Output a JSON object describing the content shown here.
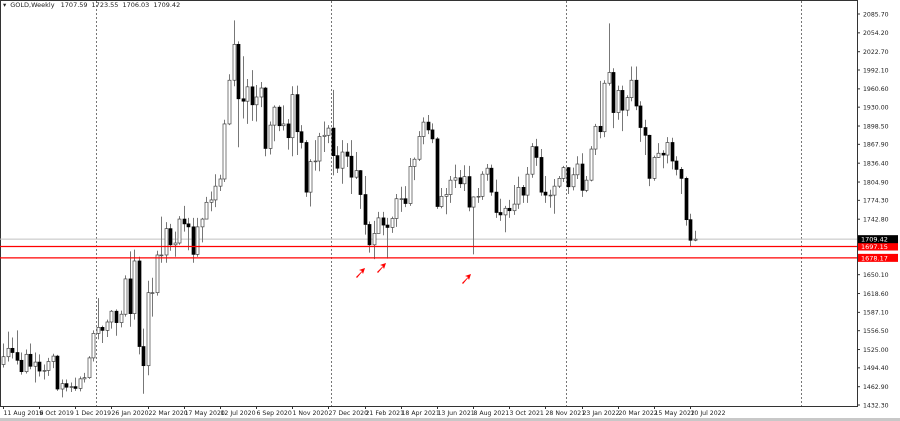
{
  "header": {
    "symbol_label": "GOLD,Weekly",
    "open": "1707.59",
    "high": "1723.55",
    "low": "1706.03",
    "close": "1709.42"
  },
  "colors": {
    "background": "#ffffff",
    "bear_body": "#000000",
    "bull_body": "#ffffff",
    "candle_outline": "#444444",
    "wick": "#777777",
    "support_line": "#ff0000",
    "arrow": "#ff0000",
    "bid_line": "#c0c0c0",
    "separator": "#555555"
  },
  "chart_data": {
    "type": "candlestick",
    "title": "GOLD,Weekly",
    "timeframe": "Weekly",
    "ylim": [
      1432.3,
      2085.7
    ],
    "grid": false,
    "first_week": "11 Aug 2019",
    "last_week": "17 Jul 2022",
    "x_tick_labels": [
      "11 Aug 2019",
      "6 Oct 2019",
      "1 Dec 2019",
      "26 Jan 2020",
      "22 Mar 2020",
      "17 May 2020",
      "12 Jul 2020",
      "6 Sep 2020",
      "1 Nov 2020",
      "27 Dec 2020",
      "21 Feb 2021",
      "18 Apr 2021",
      "13 Jun 2021",
      "8 Aug 2021",
      "3 Oct 2021",
      "28 Nov 2021",
      "23 Jan 2022",
      "20 Mar 2022",
      "15 May 2022",
      "10 Jul 2022"
    ],
    "y_tick_labels": [
      "2085.70",
      "2054.20",
      "2022.70",
      "1992.10",
      "1960.60",
      "1930.00",
      "1898.50",
      "1867.90",
      "1836.40",
      "1804.90",
      "1774.30",
      "1742.80",
      "1650.10",
      "1618.60",
      "1587.10",
      "1556.50",
      "1525.00",
      "1494.40",
      "1462.90",
      "1432.30"
    ],
    "y_ticks": [
      2085.7,
      2054.2,
      2022.7,
      1992.1,
      1960.6,
      1930.0,
      1898.5,
      1867.9,
      1836.4,
      1804.9,
      1774.3,
      1742.8,
      1650.1,
      1618.6,
      1587.1,
      1556.5,
      1525.0,
      1494.4,
      1462.9,
      1432.3
    ],
    "current_price": {
      "value": 1709.42,
      "label": "1709.42"
    },
    "horizontal_lines": [
      {
        "value": 1697.15,
        "label": "1697.15",
        "color": "#ff0000"
      },
      {
        "value": 1678.17,
        "label": "1678.17",
        "color": "#ff0000"
      }
    ],
    "arrows_at_weeks": [
      "21 Feb 2021",
      "14 Mar 2021",
      "8 Aug 2021"
    ],
    "candles": [
      [
        1500,
        1535,
        1495,
        1513
      ],
      [
        1513,
        1555,
        1505,
        1527
      ],
      [
        1527,
        1545,
        1510,
        1520
      ],
      [
        1520,
        1557,
        1500,
        1507
      ],
      [
        1507,
        1520,
        1483,
        1488
      ],
      [
        1488,
        1525,
        1485,
        1517
      ],
      [
        1517,
        1535,
        1492,
        1497
      ],
      [
        1497,
        1520,
        1470,
        1504
      ],
      [
        1504,
        1517,
        1480,
        1489
      ],
      [
        1489,
        1500,
        1475,
        1490
      ],
      [
        1490,
        1511,
        1481,
        1505
      ],
      [
        1505,
        1518,
        1494,
        1514
      ],
      [
        1514,
        1516,
        1456,
        1459
      ],
      [
        1459,
        1475,
        1445,
        1468
      ],
      [
        1468,
        1475,
        1455,
        1462
      ],
      [
        1462,
        1470,
        1454,
        1463
      ],
      [
        1463,
        1478,
        1456,
        1460
      ],
      [
        1460,
        1480,
        1455,
        1476
      ],
      [
        1476,
        1486,
        1470,
        1478
      ],
      [
        1478,
        1514,
        1476,
        1511
      ],
      [
        1511,
        1557,
        1505,
        1552
      ],
      [
        1552,
        1611,
        1542,
        1562
      ],
      [
        1562,
        1565,
        1536,
        1557
      ],
      [
        1557,
        1575,
        1546,
        1571
      ],
      [
        1571,
        1591,
        1560,
        1589
      ],
      [
        1589,
        1592,
        1548,
        1570
      ],
      [
        1570,
        1590,
        1562,
        1584
      ],
      [
        1584,
        1649,
        1580,
        1643
      ],
      [
        1643,
        1689,
        1563,
        1585
      ],
      [
        1585,
        1692,
        1575,
        1673
      ],
      [
        1673,
        1680,
        1517,
        1530
      ],
      [
        1530,
        1560,
        1451,
        1498
      ],
      [
        1498,
        1640,
        1482,
        1620
      ],
      [
        1620,
        1645,
        1580,
        1620
      ],
      [
        1620,
        1690,
        1615,
        1683
      ],
      [
        1683,
        1747,
        1670,
        1683
      ],
      [
        1683,
        1738,
        1670,
        1727
      ],
      [
        1727,
        1735,
        1690,
        1700
      ],
      [
        1700,
        1722,
        1680,
        1703
      ],
      [
        1703,
        1748,
        1700,
        1743
      ],
      [
        1743,
        1765,
        1722,
        1735
      ],
      [
        1735,
        1745,
        1691,
        1730
      ],
      [
        1730,
        1745,
        1670,
        1684
      ],
      [
        1684,
        1745,
        1680,
        1730
      ],
      [
        1730,
        1745,
        1704,
        1743
      ],
      [
        1743,
        1780,
        1743,
        1771
      ],
      [
        1771,
        1789,
        1756,
        1775
      ],
      [
        1775,
        1818,
        1763,
        1798
      ],
      [
        1798,
        1817,
        1790,
        1810
      ],
      [
        1810,
        1909,
        1805,
        1902
      ],
      [
        1902,
        1985,
        1900,
        1975
      ],
      [
        1975,
        2075,
        1965,
        2035
      ],
      [
        2035,
        2040,
        1863,
        1944
      ],
      [
        1944,
        2015,
        1911,
        1940
      ],
      [
        1940,
        1977,
        1902,
        1964
      ],
      [
        1964,
        1992,
        1907,
        1934
      ],
      [
        1934,
        1967,
        1906,
        1947
      ],
      [
        1947,
        1972,
        1930,
        1962
      ],
      [
        1962,
        1964,
        1848,
        1861
      ],
      [
        1861,
        1906,
        1851,
        1900
      ],
      [
        1900,
        1933,
        1873,
        1930
      ],
      [
        1930,
        1933,
        1890,
        1899
      ],
      [
        1899,
        1933,
        1891,
        1902
      ],
      [
        1902,
        1910,
        1859,
        1879
      ],
      [
        1879,
        1965,
        1848,
        1951
      ],
      [
        1951,
        1966,
        1850,
        1889
      ],
      [
        1889,
        1900,
        1861,
        1871
      ],
      [
        1871,
        1875,
        1780,
        1788
      ],
      [
        1788,
        1843,
        1764,
        1839
      ],
      [
        1839,
        1875,
        1824,
        1840
      ],
      [
        1840,
        1887,
        1823,
        1881
      ],
      [
        1881,
        1906,
        1855,
        1883
      ],
      [
        1883,
        1900,
        1870,
        1895
      ],
      [
        1895,
        1959,
        1816,
        1849
      ],
      [
        1849,
        1865,
        1820,
        1828
      ],
      [
        1828,
        1875,
        1802,
        1855
      ],
      [
        1855,
        1870,
        1830,
        1848
      ],
      [
        1848,
        1875,
        1785,
        1813
      ],
      [
        1813,
        1855,
        1810,
        1824
      ],
      [
        1824,
        1825,
        1760,
        1784
      ],
      [
        1784,
        1815,
        1717,
        1734
      ],
      [
        1734,
        1739,
        1687,
        1700
      ],
      [
        1700,
        1740,
        1676,
        1719
      ],
      [
        1719,
        1755,
        1719,
        1745
      ],
      [
        1745,
        1755,
        1716,
        1733
      ],
      [
        1733,
        1745,
        1677,
        1729
      ],
      [
        1729,
        1747,
        1720,
        1744
      ],
      [
        1744,
        1785,
        1730,
        1777
      ],
      [
        1777,
        1797,
        1755,
        1777
      ],
      [
        1777,
        1798,
        1763,
        1769
      ],
      [
        1769,
        1845,
        1765,
        1831
      ],
      [
        1831,
        1846,
        1808,
        1843
      ],
      [
        1843,
        1890,
        1840,
        1881
      ],
      [
        1881,
        1913,
        1868,
        1905
      ],
      [
        1905,
        1917,
        1885,
        1892
      ],
      [
        1892,
        1903,
        1870,
        1877
      ],
      [
        1877,
        1880,
        1760,
        1764
      ],
      [
        1764,
        1795,
        1761,
        1781
      ],
      [
        1781,
        1795,
        1751,
        1784
      ],
      [
        1784,
        1815,
        1770,
        1808
      ],
      [
        1808,
        1834,
        1795,
        1812
      ],
      [
        1812,
        1825,
        1795,
        1802
      ],
      [
        1802,
        1833,
        1790,
        1814
      ],
      [
        1814,
        1832,
        1756,
        1763
      ],
      [
        1763,
        1781,
        1684,
        1780
      ],
      [
        1780,
        1795,
        1770,
        1781
      ],
      [
        1781,
        1823,
        1775,
        1818
      ],
      [
        1818,
        1835,
        1807,
        1828
      ],
      [
        1828,
        1834,
        1782,
        1788
      ],
      [
        1788,
        1809,
        1745,
        1754
      ],
      [
        1754,
        1777,
        1740,
        1750
      ],
      [
        1750,
        1765,
        1721,
        1761
      ],
      [
        1761,
        1775,
        1745,
        1757
      ],
      [
        1757,
        1800,
        1750,
        1768
      ],
      [
        1768,
        1814,
        1760,
        1796
      ],
      [
        1796,
        1800,
        1770,
        1783
      ],
      [
        1783,
        1830,
        1770,
        1818
      ],
      [
        1818,
        1870,
        1812,
        1864
      ],
      [
        1864,
        1877,
        1832,
        1846
      ],
      [
        1846,
        1860,
        1782,
        1788
      ],
      [
        1788,
        1815,
        1770,
        1783
      ],
      [
        1783,
        1792,
        1762,
        1783
      ],
      [
        1783,
        1810,
        1752,
        1798
      ],
      [
        1798,
        1815,
        1795,
        1811
      ],
      [
        1811,
        1832,
        1805,
        1829
      ],
      [
        1829,
        1830,
        1785,
        1797
      ],
      [
        1797,
        1829,
        1791,
        1817
      ],
      [
        1817,
        1848,
        1810,
        1835
      ],
      [
        1835,
        1853,
        1780,
        1791
      ],
      [
        1791,
        1815,
        1788,
        1808
      ],
      [
        1808,
        1865,
        1806,
        1860
      ],
      [
        1860,
        1902,
        1850,
        1898
      ],
      [
        1898,
        1974,
        1878,
        1889
      ],
      [
        1889,
        1975,
        1880,
        1970
      ],
      [
        1970,
        2070,
        1966,
        1988
      ],
      [
        1988,
        1995,
        1895,
        1921
      ],
      [
        1921,
        1966,
        1909,
        1958
      ],
      [
        1958,
        1966,
        1890,
        1925
      ],
      [
        1925,
        1950,
        1915,
        1946
      ],
      [
        1946,
        1998,
        1940,
        1975
      ],
      [
        1975,
        1998,
        1925,
        1932
      ],
      [
        1932,
        1940,
        1872,
        1896
      ],
      [
        1896,
        1909,
        1850,
        1883
      ],
      [
        1883,
        1884,
        1798,
        1811
      ],
      [
        1811,
        1849,
        1807,
        1846
      ],
      [
        1846,
        1870,
        1845,
        1853
      ],
      [
        1853,
        1858,
        1828,
        1850
      ],
      [
        1850,
        1880,
        1836,
        1871
      ],
      [
        1871,
        1879,
        1826,
        1840
      ],
      [
        1840,
        1848,
        1816,
        1826
      ],
      [
        1826,
        1830,
        1785,
        1811
      ],
      [
        1811,
        1814,
        1732,
        1742
      ],
      [
        1742,
        1752,
        1697,
        1707.59
      ],
      [
        1707.59,
        1723.55,
        1706.03,
        1709.42
      ]
    ]
  }
}
